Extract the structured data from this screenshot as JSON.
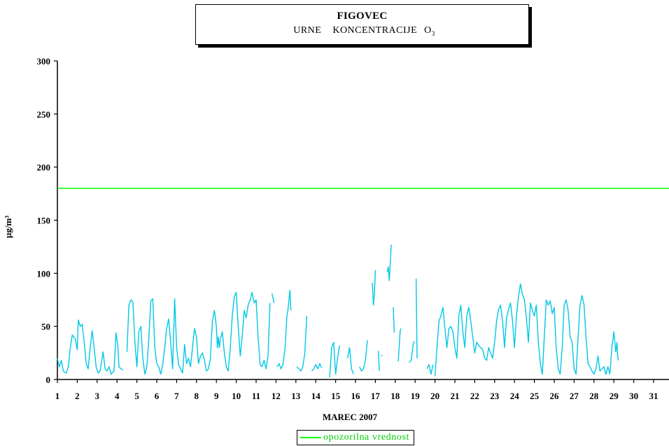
{
  "title_box": {
    "main": "FIGOVEC",
    "sub_words": [
      "URNE",
      "KONCENTRACIJE",
      "O"
    ],
    "sub_subscript": "3"
  },
  "chart_data": {
    "type": "line",
    "title": "FIGOVEC",
    "subtitle": "URNE KONCENTRACIJE O3",
    "xlabel": "MAREC 2007",
    "ylabel": "µg/m³",
    "ylim": [
      0,
      300
    ],
    "yticks": [
      0,
      50,
      100,
      150,
      200,
      250,
      300
    ],
    "xticks": [
      "1",
      "2",
      "3",
      "4",
      "5",
      "6",
      "7",
      "8",
      "9",
      "10",
      "11",
      "12",
      "13",
      "14",
      "15",
      "16",
      "17",
      "18",
      "19",
      "20",
      "21",
      "22",
      "23",
      "24",
      "25",
      "26",
      "27",
      "28",
      "29",
      "30",
      "31"
    ],
    "grid": false,
    "legend": {
      "placement": "bottom-center",
      "entries": [
        {
          "name": "opozorilna vrednost",
          "color": "#00ff00"
        }
      ]
    },
    "series": [
      {
        "color": "#00c8e6",
        "points": [
          [
            1.0,
            20
          ],
          [
            1.1,
            12
          ],
          [
            1.2,
            18
          ],
          [
            1.3,
            8
          ],
          [
            1.45,
            6
          ],
          [
            1.55,
            12
          ],
          [
            1.65,
            30
          ],
          [
            1.75,
            42
          ],
          [
            1.9,
            38
          ],
          [
            2.0,
            28
          ],
          [
            2.05,
            56
          ],
          [
            2.15,
            50
          ],
          [
            2.25,
            52
          ],
          [
            2.35,
            35
          ],
          [
            2.45,
            15
          ],
          [
            2.55,
            10
          ],
          [
            2.65,
            30
          ],
          [
            2.75,
            46
          ],
          [
            2.85,
            30
          ],
          [
            2.95,
            12
          ],
          [
            3.05,
            6
          ],
          [
            3.15,
            8
          ],
          [
            3.3,
            26
          ],
          [
            3.4,
            10
          ],
          [
            3.5,
            8
          ],
          [
            3.6,
            12
          ],
          [
            3.7,
            5
          ],
          [
            3.85,
            8
          ],
          [
            3.95,
            44
          ],
          [
            4.05,
            30
          ],
          [
            4.1,
            12
          ],
          [
            4.2,
            10
          ],
          [
            4.3,
            9
          ],
          null,
          [
            4.5,
            26
          ],
          [
            4.6,
            70
          ],
          [
            4.7,
            75
          ],
          [
            4.8,
            73
          ],
          [
            4.9,
            35
          ],
          [
            5.0,
            12
          ],
          [
            5.1,
            45
          ],
          [
            5.2,
            50
          ],
          [
            5.3,
            20
          ],
          [
            5.4,
            5
          ],
          [
            5.5,
            12
          ],
          [
            5.6,
            38
          ],
          [
            5.7,
            74
          ],
          [
            5.8,
            76
          ],
          [
            5.9,
            30
          ],
          [
            6.0,
            15
          ],
          [
            6.1,
            12
          ],
          [
            6.2,
            5
          ],
          [
            6.3,
            14
          ],
          [
            6.4,
            30
          ],
          [
            6.5,
            48
          ],
          [
            6.6,
            57
          ],
          [
            6.7,
            35
          ],
          [
            6.8,
            10
          ],
          [
            6.9,
            76
          ],
          [
            7.0,
            30
          ],
          [
            7.1,
            14
          ],
          [
            7.2,
            10
          ],
          [
            7.3,
            6
          ],
          [
            7.4,
            33
          ],
          [
            7.5,
            15
          ],
          [
            7.6,
            20
          ],
          [
            7.7,
            12
          ],
          [
            7.8,
            30
          ],
          [
            7.9,
            48
          ],
          [
            8.0,
            40
          ],
          [
            8.1,
            15
          ],
          [
            8.2,
            22
          ],
          [
            8.3,
            25
          ],
          [
            8.4,
            18
          ],
          [
            8.5,
            8
          ],
          [
            8.6,
            10
          ],
          [
            8.7,
            20
          ],
          [
            8.8,
            55
          ],
          [
            8.9,
            65
          ],
          [
            9.0,
            50
          ],
          [
            9.05,
            30
          ],
          [
            9.1,
            40
          ],
          [
            9.15,
            30
          ],
          [
            9.2,
            38
          ],
          [
            9.3,
            45
          ],
          [
            9.4,
            25
          ],
          [
            9.5,
            12
          ],
          [
            9.6,
            8
          ],
          [
            9.7,
            30
          ],
          [
            9.8,
            60
          ],
          [
            9.9,
            78
          ],
          [
            10.0,
            82
          ],
          [
            10.1,
            50
          ],
          [
            10.2,
            22
          ],
          [
            10.3,
            40
          ],
          [
            10.4,
            65
          ],
          [
            10.5,
            58
          ],
          [
            10.6,
            70
          ],
          [
            10.7,
            75
          ],
          [
            10.8,
            82
          ],
          [
            10.9,
            72
          ],
          [
            11.0,
            75
          ],
          [
            11.1,
            40
          ],
          [
            11.2,
            14
          ],
          [
            11.3,
            12
          ],
          [
            11.4,
            18
          ],
          [
            11.5,
            10
          ],
          [
            11.6,
            22
          ],
          [
            11.7,
            72
          ],
          null,
          [
            11.8,
            81
          ],
          [
            11.9,
            72
          ],
          null,
          [
            12.05,
            12
          ],
          [
            12.15,
            15
          ],
          [
            12.25,
            10
          ],
          [
            12.35,
            14
          ],
          [
            12.45,
            28
          ],
          [
            12.55,
            60
          ],
          [
            12.6,
            65
          ],
          [
            12.7,
            84
          ],
          [
            12.75,
            65
          ],
          null,
          [
            13.05,
            12
          ],
          [
            13.15,
            10
          ],
          [
            13.25,
            8
          ],
          [
            13.35,
            12
          ],
          [
            13.45,
            25
          ],
          [
            13.55,
            60
          ],
          null,
          [
            13.8,
            8
          ],
          [
            13.9,
            10
          ],
          [
            14.0,
            14
          ],
          [
            14.1,
            10
          ],
          [
            14.2,
            15
          ],
          [
            14.3,
            11
          ],
          null,
          [
            14.7,
            2
          ],
          [
            14.8,
            30
          ],
          [
            14.9,
            35
          ],
          [
            15.0,
            5
          ],
          [
            15.1,
            20
          ],
          [
            15.2,
            32
          ],
          null,
          [
            15.6,
            20
          ],
          [
            15.7,
            30
          ],
          [
            15.8,
            10
          ],
          [
            15.9,
            5
          ],
          null,
          [
            16.2,
            12
          ],
          [
            16.3,
            8
          ],
          [
            16.4,
            10
          ],
          [
            16.5,
            18
          ],
          [
            16.6,
            37
          ],
          null,
          [
            16.85,
            91
          ],
          [
            16.9,
            70
          ],
          [
            16.95,
            80
          ],
          [
            17.0,
            103
          ],
          null,
          [
            17.15,
            27
          ],
          [
            17.2,
            8
          ],
          null,
          [
            17.3,
            22
          ],
          [
            17.35,
            23
          ],
          null,
          [
            17.6,
            101
          ],
          [
            17.65,
            106
          ],
          [
            17.7,
            93
          ],
          [
            17.75,
            110
          ],
          [
            17.8,
            127
          ],
          null,
          [
            17.9,
            68
          ],
          [
            17.95,
            44
          ],
          null,
          [
            18.15,
            17
          ],
          [
            18.25,
            46
          ],
          [
            18.3,
            48
          ],
          null,
          [
            18.7,
            16
          ],
          [
            18.8,
            18
          ],
          [
            18.9,
            33
          ],
          [
            18.95,
            36
          ],
          null,
          [
            19.05,
            95
          ],
          [
            19.1,
            20
          ],
          null,
          [
            19.6,
            10
          ],
          [
            19.7,
            14
          ],
          [
            19.8,
            5
          ],
          [
            19.9,
            14
          ],
          null,
          [
            20.0,
            3
          ],
          [
            20.1,
            30
          ],
          [
            20.2,
            55
          ],
          [
            20.3,
            60
          ],
          [
            20.4,
            68
          ],
          [
            20.5,
            48
          ],
          [
            20.6,
            30
          ],
          [
            20.7,
            48
          ],
          [
            20.8,
            50
          ],
          [
            20.9,
            45
          ],
          [
            21.0,
            30
          ],
          [
            21.1,
            20
          ],
          [
            21.2,
            60
          ],
          [
            21.3,
            70
          ],
          [
            21.4,
            45
          ],
          [
            21.5,
            30
          ],
          [
            21.6,
            60
          ],
          [
            21.7,
            68
          ],
          [
            21.8,
            55
          ],
          [
            21.9,
            40
          ],
          [
            22.0,
            25
          ],
          [
            22.1,
            35
          ],
          [
            22.2,
            32
          ],
          [
            22.3,
            30
          ],
          [
            22.4,
            28
          ],
          [
            22.5,
            20
          ],
          [
            22.6,
            18
          ],
          [
            22.7,
            30
          ],
          [
            22.8,
            25
          ],
          [
            22.9,
            20
          ],
          [
            23.0,
            35
          ],
          [
            23.1,
            55
          ],
          [
            23.2,
            66
          ],
          [
            23.3,
            70
          ],
          [
            23.4,
            55
          ],
          [
            23.5,
            30
          ],
          [
            23.6,
            58
          ],
          [
            23.7,
            66
          ],
          [
            23.8,
            72
          ],
          [
            23.9,
            55
          ],
          [
            24.0,
            30
          ],
          [
            24.1,
            60
          ],
          [
            24.2,
            78
          ],
          [
            24.3,
            90
          ],
          [
            24.4,
            80
          ],
          [
            24.5,
            75
          ],
          [
            24.6,
            58
          ],
          [
            24.7,
            35
          ],
          [
            24.8,
            72
          ],
          [
            24.9,
            65
          ],
          [
            25.0,
            60
          ],
          [
            25.1,
            70
          ],
          [
            25.2,
            35
          ],
          [
            25.3,
            15
          ],
          [
            25.4,
            5
          ],
          [
            25.5,
            40
          ],
          [
            25.6,
            75
          ],
          [
            25.7,
            70
          ],
          [
            25.8,
            74
          ],
          [
            25.9,
            62
          ],
          [
            26.0,
            68
          ],
          [
            26.1,
            30
          ],
          [
            26.2,
            10
          ],
          [
            26.3,
            5
          ],
          [
            26.4,
            30
          ],
          [
            26.5,
            70
          ],
          [
            26.6,
            75
          ],
          [
            26.7,
            65
          ],
          [
            26.8,
            40
          ],
          [
            26.9,
            35
          ],
          [
            27.0,
            10
          ],
          [
            27.1,
            5
          ],
          [
            27.2,
            40
          ],
          [
            27.3,
            70
          ],
          [
            27.4,
            79
          ],
          [
            27.5,
            70
          ],
          [
            27.6,
            40
          ],
          [
            27.7,
            15
          ],
          [
            27.8,
            12
          ],
          [
            27.9,
            8
          ],
          [
            28.0,
            5
          ],
          [
            28.1,
            10
          ],
          [
            28.2,
            22
          ],
          [
            28.3,
            8
          ],
          [
            28.4,
            10
          ],
          [
            28.5,
            12
          ],
          [
            28.6,
            5
          ],
          [
            28.7,
            12
          ],
          [
            28.8,
            5
          ],
          [
            28.9,
            30
          ],
          [
            29.0,
            45
          ],
          [
            29.1,
            26
          ],
          [
            29.15,
            35
          ],
          [
            29.2,
            20
          ],
          [
            29.25,
            18
          ]
        ]
      },
      {
        "name": "opozorilna vrednost",
        "color": "#00ff00",
        "constant": 180
      }
    ]
  }
}
